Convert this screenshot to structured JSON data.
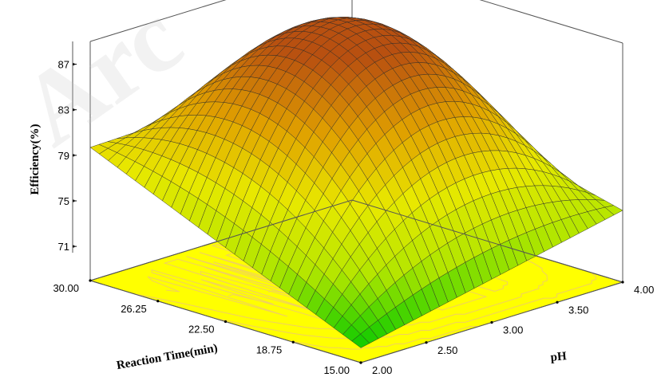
{
  "chart_data": {
    "type": "surface3d",
    "zlabel": "Efficiency(%)",
    "xlabel": "Reaction Time(min)",
    "ylabel": "pH",
    "z_ticks": [
      "71",
      "75",
      "79",
      "83",
      "87"
    ],
    "time_ticks": [
      "30.00",
      "26.25",
      "22.50",
      "18.75",
      "15.00"
    ],
    "ph_ticks": [
      "2.00",
      "2.50",
      "3.00",
      "3.50",
      "4.00"
    ],
    "time_range": [
      15,
      30
    ],
    "ph_range": [
      2,
      4
    ],
    "z_range": [
      68,
      89
    ],
    "surface_points": [
      {
        "time": 30,
        "ph": 2,
        "efficiency": 79.7
      },
      {
        "time": 15,
        "ph": 2,
        "efficiency": 69.3
      },
      {
        "time": 15,
        "ph": 4,
        "efficiency": 74.3
      },
      {
        "time": 30,
        "ph": 4,
        "efficiency": 80.3
      },
      {
        "time": 26.5,
        "ph": 3.05,
        "efficiency": 88.0
      }
    ],
    "colormap": [
      "#00c800",
      "#b4e600",
      "#e8e800",
      "#e0a000",
      "#b85010"
    ],
    "base_color": "#ffff00",
    "watermark": "Arc"
  }
}
